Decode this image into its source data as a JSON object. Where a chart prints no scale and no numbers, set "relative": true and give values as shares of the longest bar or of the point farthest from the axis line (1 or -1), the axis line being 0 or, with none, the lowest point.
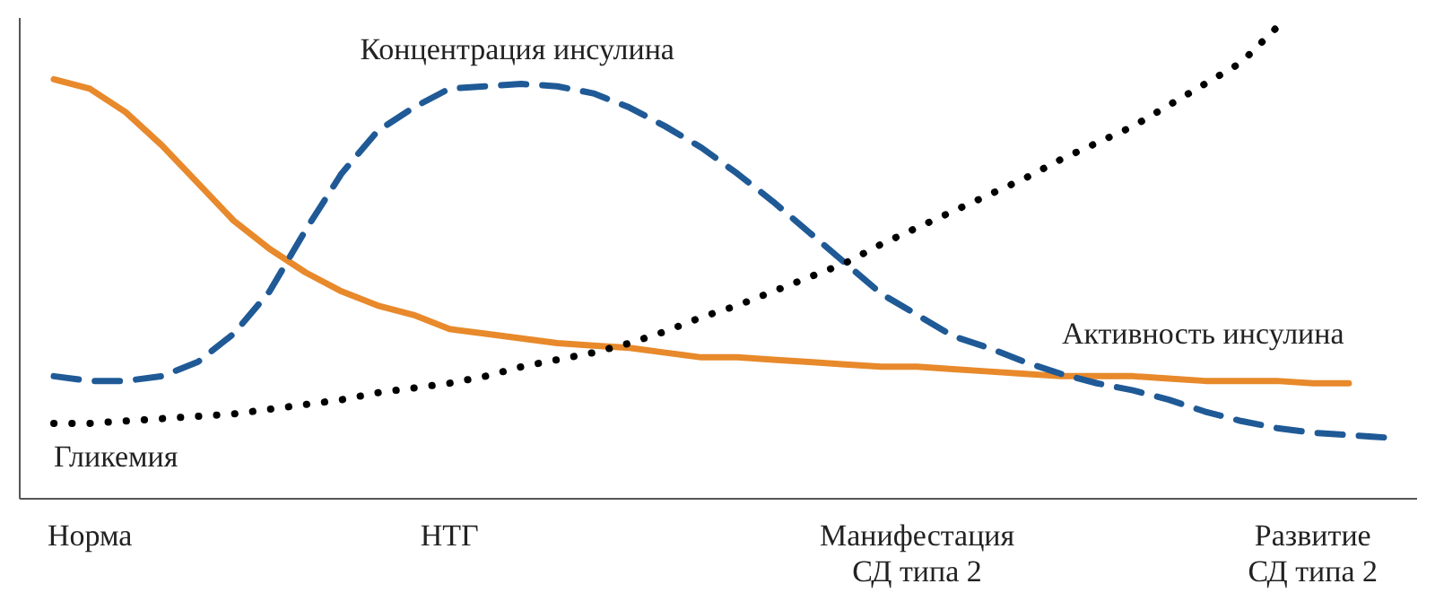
{
  "chart_data": {
    "type": "line",
    "relative": true,
    "categories": [
      null,
      "Норма",
      null,
      null,
      null,
      null,
      null,
      null,
      null,
      null,
      null,
      "НТГ",
      null,
      null,
      null,
      null,
      null,
      null,
      null,
      null,
      null,
      null,
      null,
      null,
      "Манифестация\nСД типа 2",
      null,
      null,
      null,
      null,
      null,
      null,
      null,
      null,
      null,
      null,
      "Развитие\nСД типа 2",
      null,
      null
    ],
    "grid": false,
    "legend": false,
    "marker": "none",
    "series": [
      {
        "name": "Активность инсулина",
        "color": "#e8892b",
        "line_style": "solid",
        "values": [
          0.89,
          0.87,
          0.82,
          0.75,
          0.67,
          0.59,
          0.53,
          0.48,
          0.44,
          0.41,
          0.39,
          0.36,
          0.35,
          0.34,
          0.33,
          0.325,
          0.32,
          0.31,
          0.3,
          0.3,
          0.295,
          0.29,
          0.285,
          0.28,
          0.28,
          0.275,
          0.27,
          0.265,
          0.26,
          0.26,
          0.26,
          0.255,
          0.25,
          0.25,
          0.25,
          0.245,
          0.245,
          null
        ]
      },
      {
        "name": "Концентрация инсулина",
        "color": "#1f5a96",
        "line_style": "dashed",
        "values": [
          0.26,
          0.25,
          0.25,
          0.26,
          0.29,
          0.35,
          0.44,
          0.57,
          0.69,
          0.78,
          0.83,
          0.87,
          0.875,
          0.88,
          0.875,
          0.86,
          0.83,
          0.79,
          0.745,
          0.69,
          0.63,
          0.565,
          0.5,
          0.435,
          0.39,
          0.345,
          0.32,
          0.29,
          0.265,
          0.245,
          0.23,
          0.21,
          0.185,
          0.165,
          0.15,
          0.14,
          0.135,
          0.13
        ]
      },
      {
        "name": "Гликемия",
        "color": "#000000",
        "line_style": "dotted",
        "values": [
          0.16,
          0.16,
          0.165,
          0.17,
          0.175,
          0.18,
          0.19,
          0.2,
          0.21,
          0.225,
          0.235,
          0.245,
          0.26,
          0.28,
          0.295,
          0.31,
          0.33,
          0.355,
          0.385,
          0.41,
          0.44,
          0.47,
          0.5,
          0.54,
          0.575,
          0.61,
          0.645,
          0.68,
          0.72,
          0.755,
          0.79,
          0.835,
          0.88,
          0.925,
          1.0,
          null,
          null,
          null
        ]
      }
    ]
  }
}
